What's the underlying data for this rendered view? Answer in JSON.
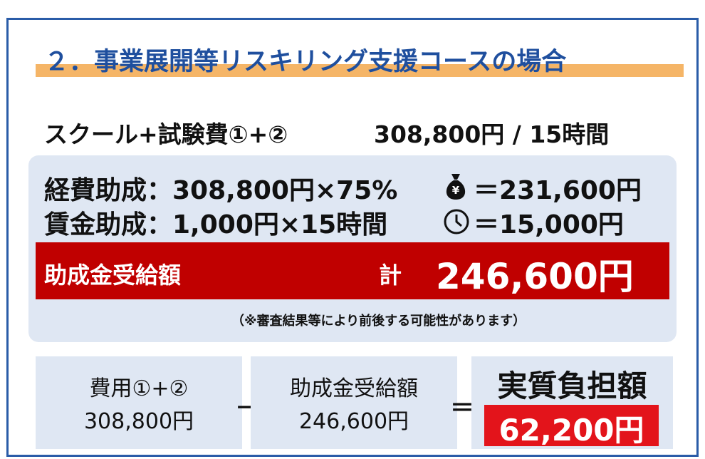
{
  "header": {
    "title": "２．事業展開等リスキリング支援コースの場合"
  },
  "course": {
    "label": "スクール+試験費①+②",
    "amount": "308,800円 / 15時間"
  },
  "breakdown": {
    "rows": [
      {
        "label": "経費助成：308,800円×75%",
        "result": "＝231,600円"
      },
      {
        "label": "賃金助成：1,000円×15時間",
        "result": "＝15,000円"
      }
    ],
    "total": {
      "label": "助成金受給額",
      "sum_label": "計",
      "amount": "246,600円"
    },
    "note": "（※審査結果等により前後する可能性があります）"
  },
  "equation": {
    "cost": {
      "label": "費用①+②",
      "amount": "308,800円"
    },
    "minus": "－",
    "subsidy": {
      "label": "助成金受給額",
      "amount": "246,600円"
    },
    "equals": "＝",
    "net": {
      "label": "実質負担額",
      "amount": "62,200円"
    }
  }
}
